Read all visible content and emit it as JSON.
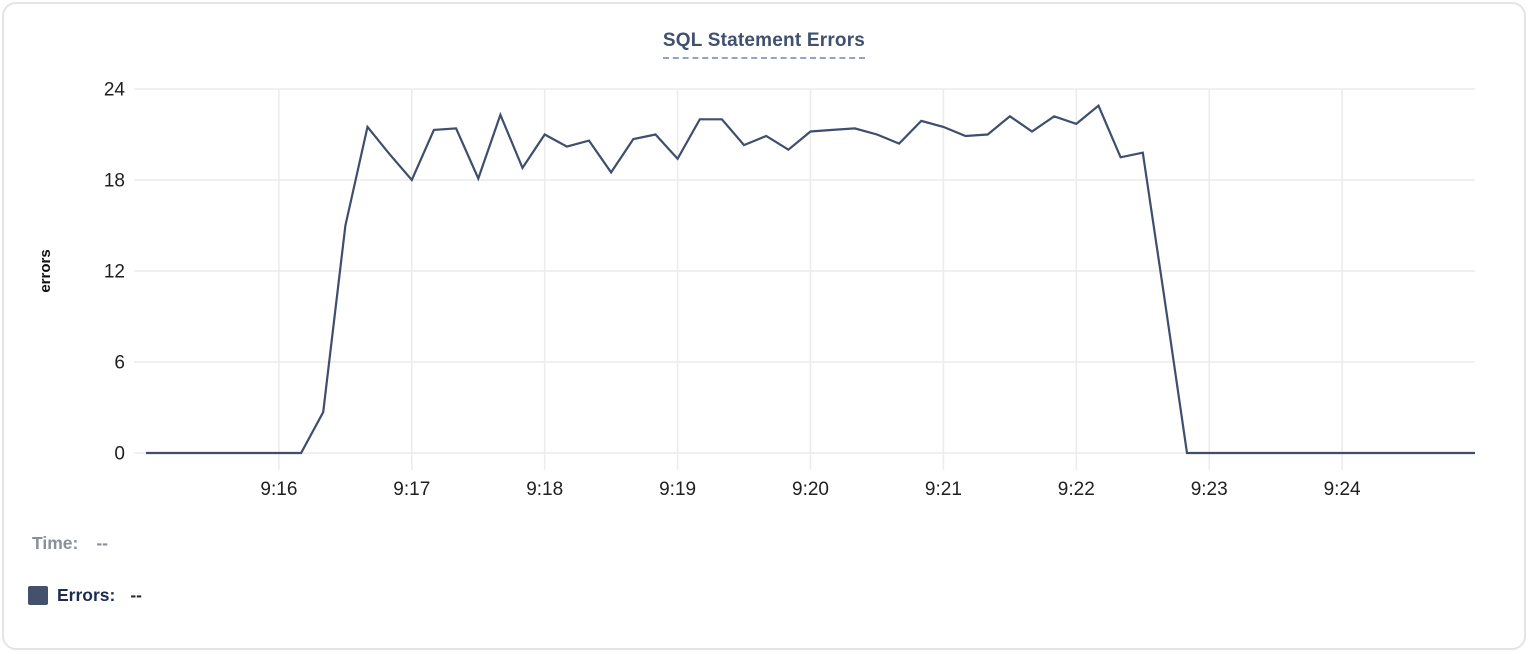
{
  "chart": {
    "title": "SQL Statement Errors"
  },
  "chart_data": {
    "type": "line",
    "title": "SQL Statement Errors",
    "xlabel": "",
    "ylabel": "errors",
    "ylim": [
      0,
      24
    ],
    "y_ticks": [
      0,
      6,
      12,
      18,
      24
    ],
    "x_tick_labels": [
      "9:16",
      "9:17",
      "9:18",
      "9:19",
      "9:20",
      "9:21",
      "9:22",
      "9:23",
      "9:24"
    ],
    "x_range": [
      "9:15:00",
      "9:25:00"
    ],
    "sample_interval_seconds": 10,
    "grid": true,
    "legend_position": "bottom-left",
    "times": [
      "9:15:00",
      "9:15:10",
      "9:15:20",
      "9:15:30",
      "9:15:40",
      "9:15:50",
      "9:16:00",
      "9:16:10",
      "9:16:20",
      "9:16:30",
      "9:16:40",
      "9:16:50",
      "9:17:00",
      "9:17:10",
      "9:17:20",
      "9:17:30",
      "9:17:40",
      "9:17:50",
      "9:18:00",
      "9:18:10",
      "9:18:20",
      "9:18:30",
      "9:18:40",
      "9:18:50",
      "9:19:00",
      "9:19:10",
      "9:19:20",
      "9:19:30",
      "9:19:40",
      "9:19:50",
      "9:20:00",
      "9:20:10",
      "9:20:20",
      "9:20:30",
      "9:20:40",
      "9:20:50",
      "9:21:00",
      "9:21:10",
      "9:21:20",
      "9:21:30",
      "9:21:40",
      "9:21:50",
      "9:22:00",
      "9:22:10",
      "9:22:20",
      "9:22:30",
      "9:22:40",
      "9:22:50",
      "9:23:00",
      "9:23:10",
      "9:23:20",
      "9:23:30",
      "9:23:40",
      "9:23:50",
      "9:24:00",
      "9:24:10",
      "9:24:20",
      "9:24:30",
      "9:24:40",
      "9:24:50",
      "9:25:00"
    ],
    "series": [
      {
        "name": "Errors",
        "color": "#3e4e6d",
        "values": [
          0,
          0,
          0,
          0,
          0,
          0,
          0,
          0,
          2.7,
          15,
          21.5,
          19.7,
          18,
          21.3,
          21.4,
          18.1,
          22.3,
          18.8,
          21,
          20.2,
          20.6,
          18.5,
          20.7,
          21,
          19.4,
          22,
          22,
          20.3,
          20.9,
          20,
          21.2,
          21.3,
          21.4,
          21,
          20.4,
          21.9,
          21.5,
          20.9,
          21,
          22.2,
          21.2,
          22.2,
          21.7,
          22.9,
          19.5,
          19.8,
          10,
          0,
          0,
          0,
          0,
          0,
          0,
          0,
          0,
          0,
          0,
          0,
          0,
          0,
          0
        ]
      }
    ]
  },
  "legend": {
    "time_label": "Time:",
    "time_value": "--",
    "errors_label": "Errors:",
    "errors_value": "--"
  },
  "colors": {
    "line": "#3e4e6d",
    "legend_swatch": "#44516d",
    "grid": "#ececec",
    "axis_text": "#1f1f1f",
    "title_text": "#3f5070",
    "title_underline": "#97a3c0",
    "time_text": "#8b9096",
    "errors_text": "#1e2c52",
    "card_border": "#e3e4e8"
  }
}
